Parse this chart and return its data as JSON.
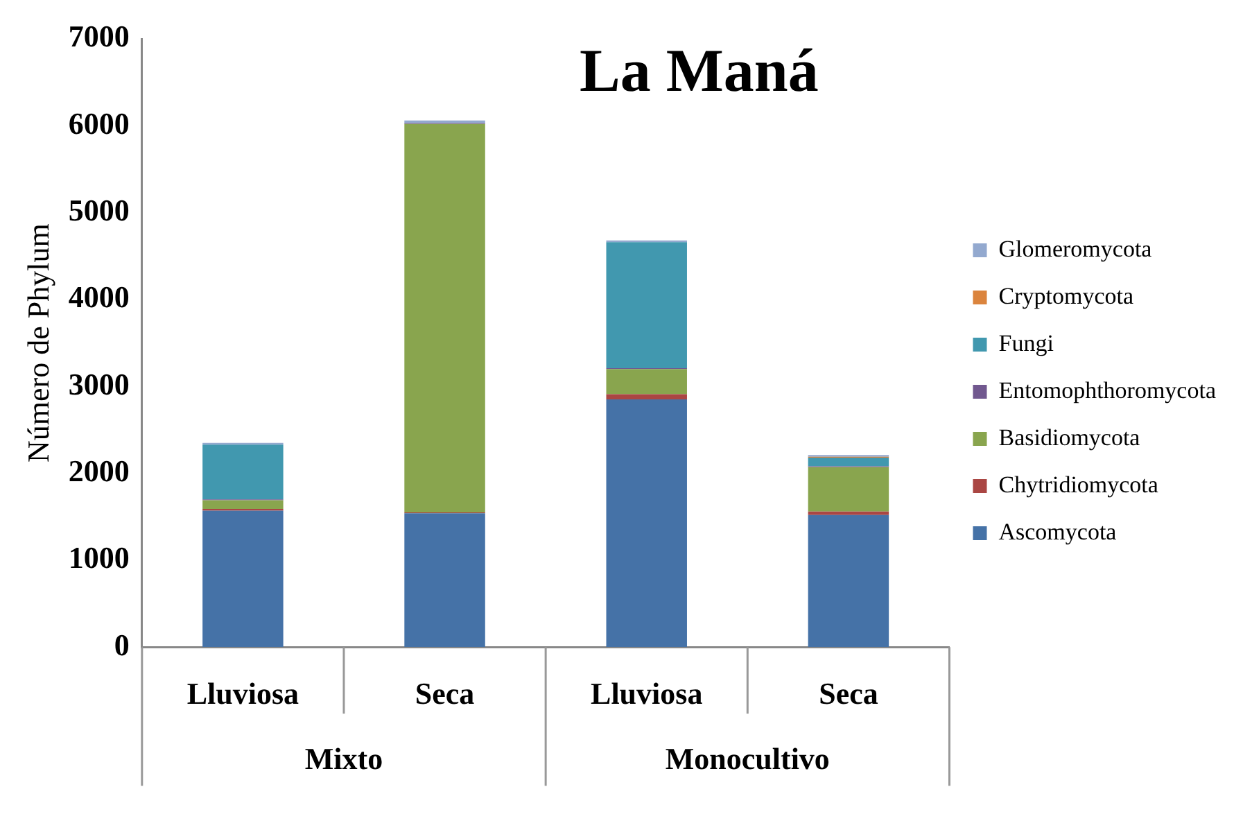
{
  "chart_data": {
    "type": "bar",
    "title": "La Maná",
    "ylabel": "Número de Phylum",
    "categories": [
      "Lluviosa",
      "Seca",
      "Lluviosa",
      "Seca"
    ],
    "annotations": [
      "Mixto",
      "Monocultivo"
    ],
    "stacked": true,
    "ylim": [
      0,
      7000
    ],
    "yticks": [
      0,
      1000,
      2000,
      3000,
      4000,
      5000,
      6000,
      7000
    ],
    "grid": false,
    "legend": "right",
    "series": [
      {
        "name": "Ascomycota",
        "color": "#4572a7",
        "values": [
          1570,
          1540,
          2850,
          1520
        ]
      },
      {
        "name": "Chytridiomycota",
        "color": "#aa4643",
        "values": [
          20,
          10,
          60,
          40
        ]
      },
      {
        "name": "Basidiomycota",
        "color": "#89a54e",
        "values": [
          100,
          4470,
          290,
          510
        ]
      },
      {
        "name": "Entomophthoromycota",
        "color": "#71588f",
        "values": [
          10,
          10,
          10,
          10
        ]
      },
      {
        "name": "Fungi",
        "color": "#4198af",
        "values": [
          630,
          0,
          1450,
          100
        ]
      },
      {
        "name": "Cryptomycota",
        "color": "#db843d",
        "values": [
          0,
          0,
          0,
          10
        ]
      },
      {
        "name": "Glomeromycota",
        "color": "#93a9cf",
        "values": [
          20,
          30,
          20,
          20
        ]
      }
    ]
  }
}
